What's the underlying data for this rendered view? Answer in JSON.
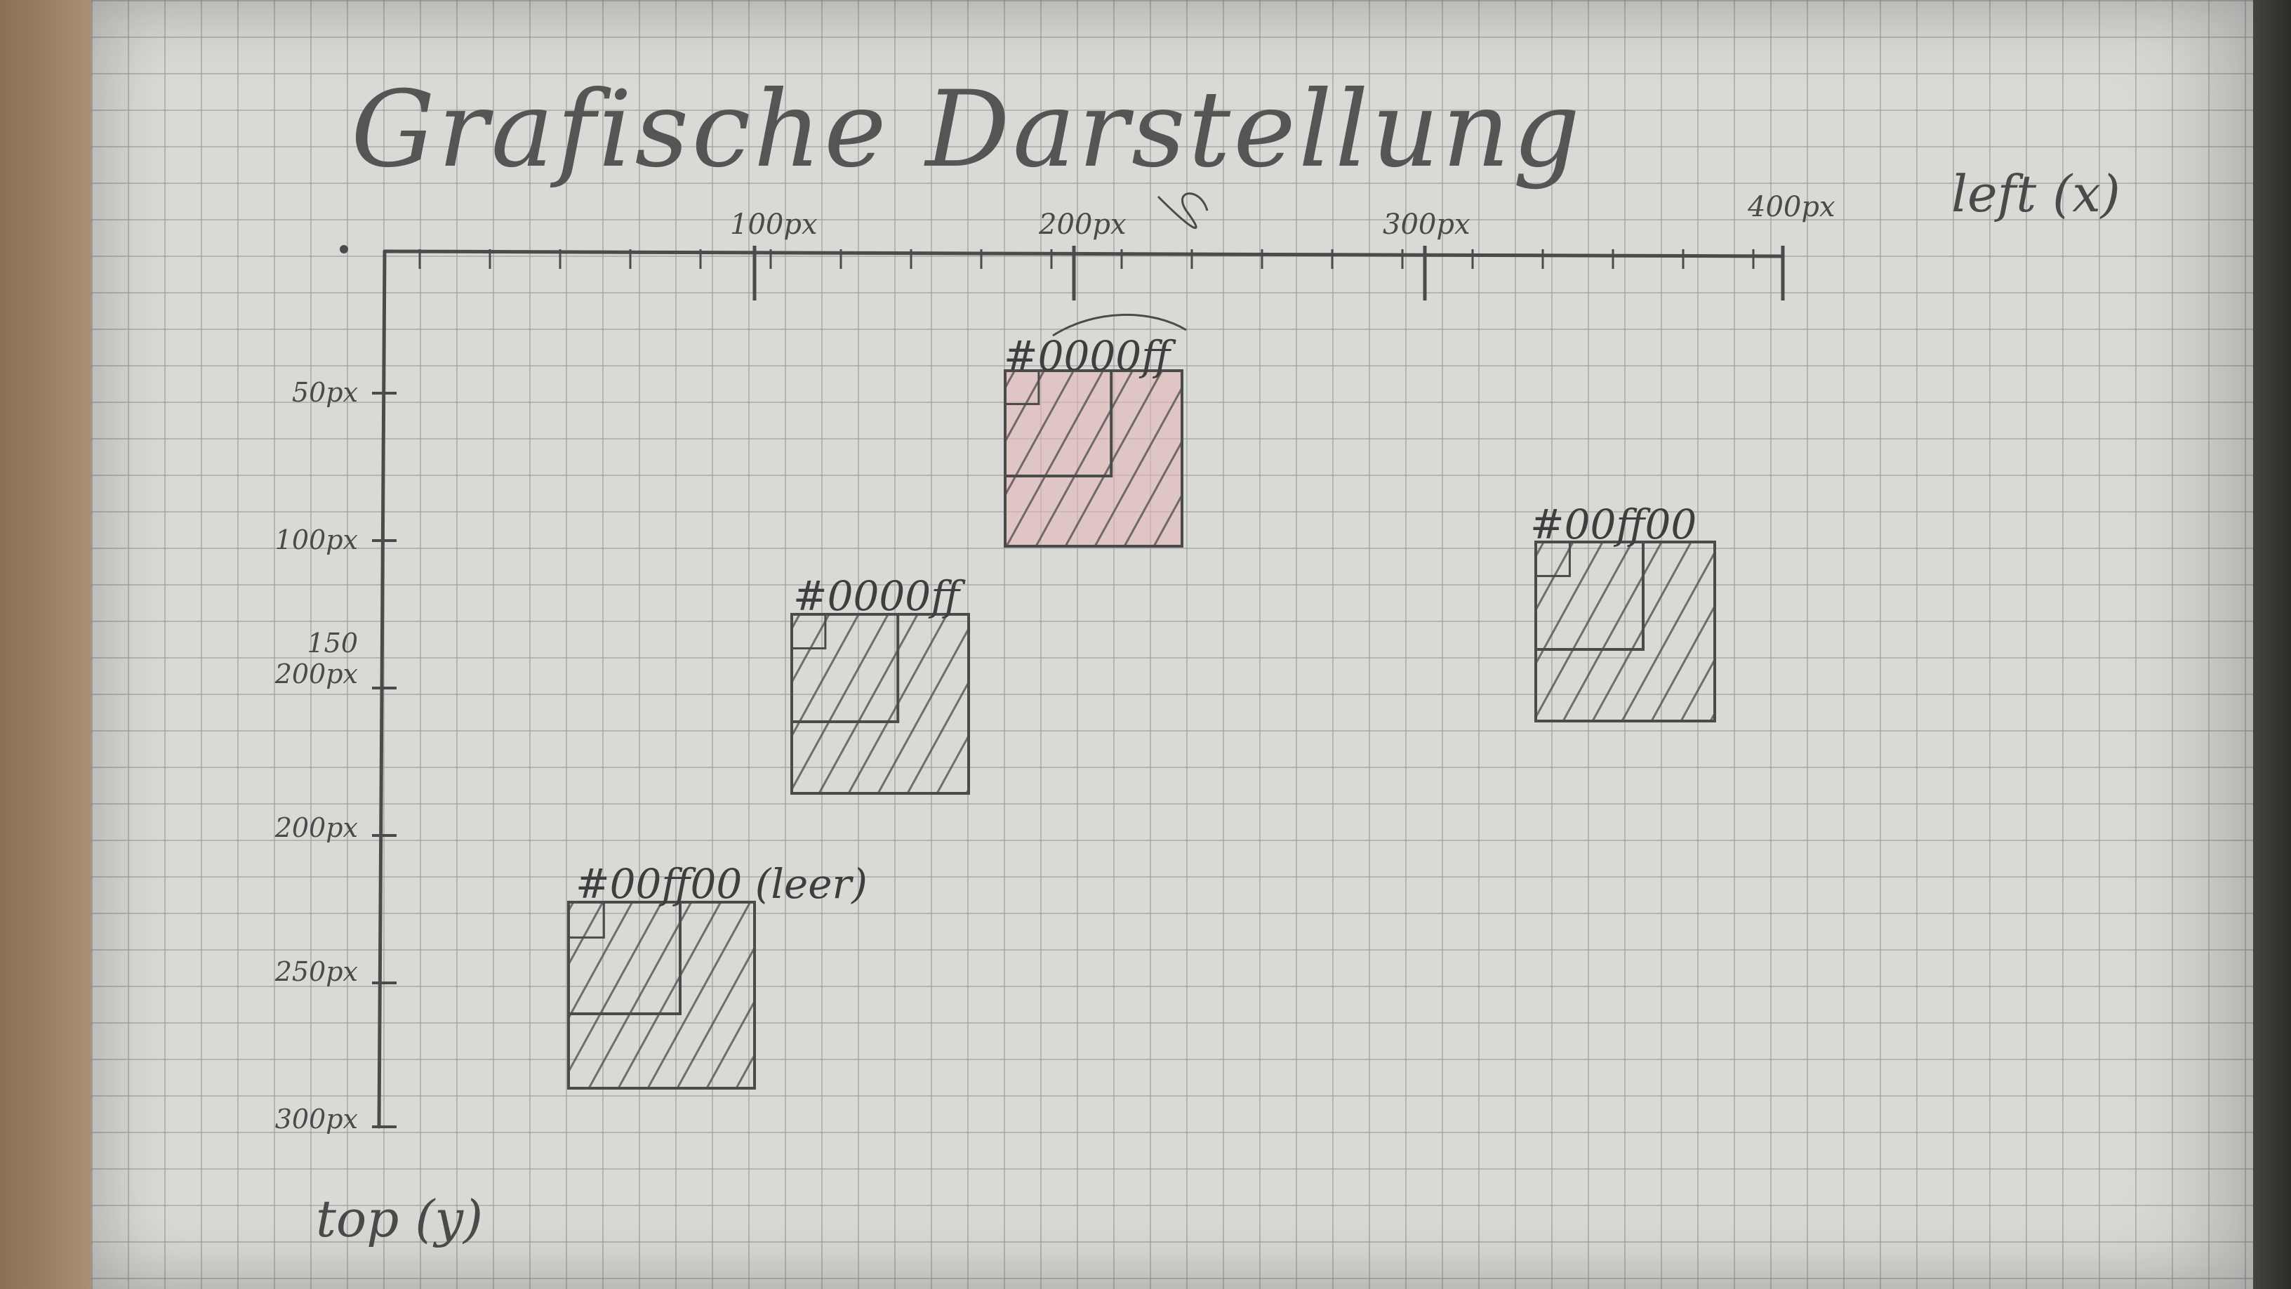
{
  "title": "Grafische Darstellung",
  "axes": {
    "x_label": "left (x)",
    "y_label": "top (y)",
    "x_ticks": [
      "100px",
      "200px",
      "300px",
      "400px"
    ],
    "y_ticks": [
      "50px",
      "100px",
      "150\n200px",
      "200px",
      "250px",
      "300px"
    ]
  },
  "boxes": [
    {
      "label": "#0000ff",
      "color": "#0000ff",
      "fill": "#e2b8b8"
    },
    {
      "label": "#00ff00",
      "color": "#00ff00",
      "fill": "none"
    },
    {
      "label": "#0000ff",
      "color": "#0000ff",
      "fill": "none"
    },
    {
      "label": "#00ff00 (leer)",
      "color": "#00ff00",
      "fill": "none"
    }
  ]
}
